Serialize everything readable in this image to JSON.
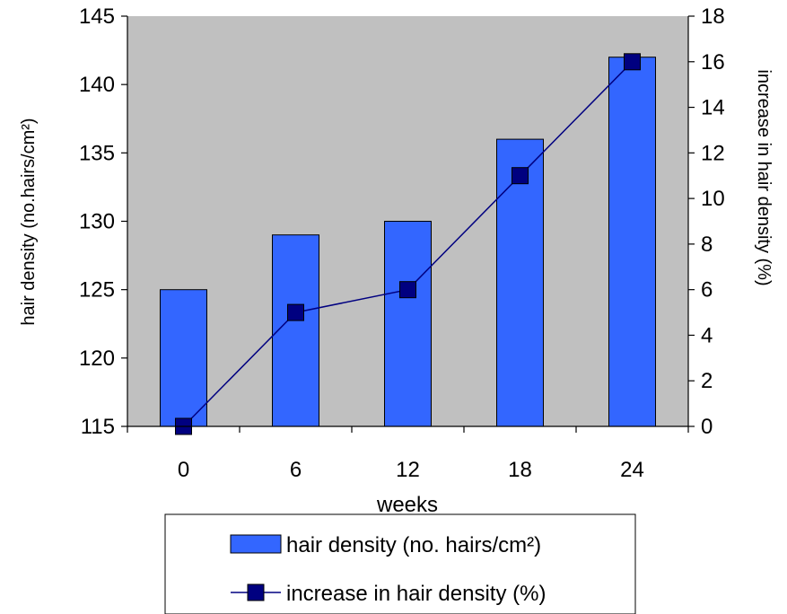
{
  "chart_data": {
    "type": "bar",
    "categories": [
      "0",
      "6",
      "12",
      "18",
      "24"
    ],
    "xlabel": "weeks",
    "series": [
      {
        "name": "hair density (no. hairs/cm²)",
        "type": "bar",
        "axis": "left",
        "values": [
          125,
          129,
          130,
          136,
          142
        ],
        "color": "#3366ff"
      },
      {
        "name": "increase in hair density (%)",
        "type": "line",
        "axis": "right",
        "values": [
          0,
          5,
          6,
          11,
          16
        ],
        "color": "#000080"
      }
    ],
    "y_left": {
      "label": "hair density (no.hairs/cm²)",
      "ylim": [
        115,
        145
      ],
      "ticks": [
        "115",
        "120",
        "125",
        "130",
        "135",
        "140",
        "145"
      ]
    },
    "y_right": {
      "label": "increase in hair density (%)",
      "ylim": [
        0,
        18
      ],
      "ticks": [
        "0",
        "2",
        "4",
        "6",
        "8",
        "10",
        "12",
        "14",
        "16",
        "18"
      ]
    },
    "plot_background": "#c0c0c0",
    "grid": false,
    "legend_position": "bottom"
  }
}
